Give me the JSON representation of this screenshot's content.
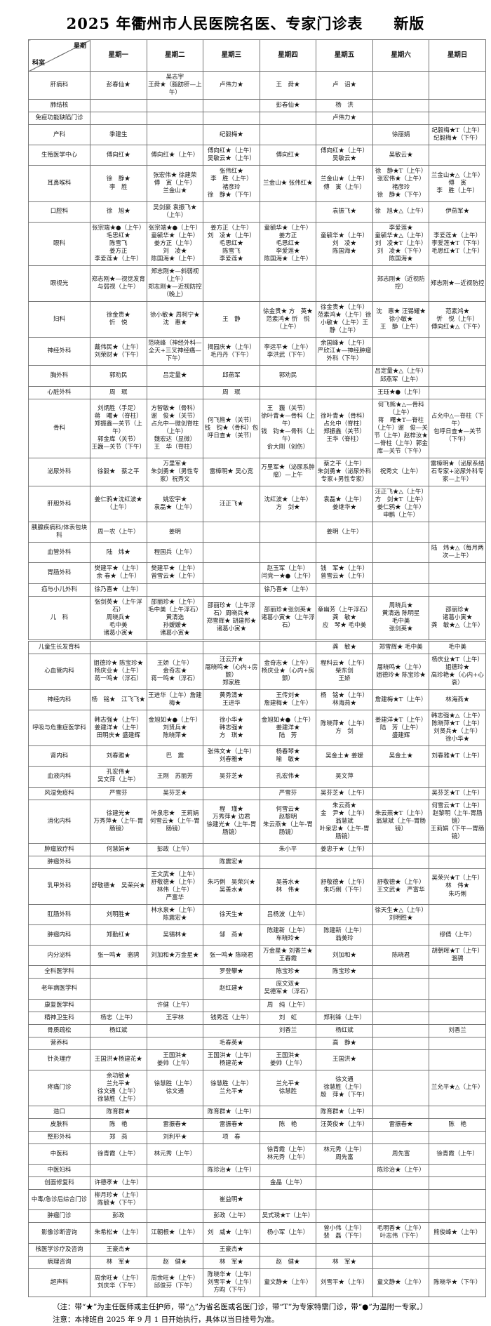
{
  "header": {
    "title": "2025 年衢州市人民医院名医、专家门诊表　　新版"
  },
  "table": {
    "corner": {
      "top": "星期",
      "bottom": "科室"
    },
    "days": [
      "星期一",
      "星期二",
      "星期三",
      "星期四",
      "星期五",
      "星期六",
      "星期日"
    ],
    "rows": [
      {
        "dept": "肝病科",
        "cells": [
          "彭春仙★",
          "吴志宇\n王舜★（脂肪肝—上午）",
          "卢伟力★",
          "王　舜★",
          "卢　诏★",
          "",
          ""
        ]
      },
      {
        "dept": "肺结核",
        "cells": [
          "",
          "",
          "",
          "彭春仙★",
          "杨　洪",
          "",
          ""
        ]
      },
      {
        "dept": "免疫功能缺陷门诊",
        "cells": [
          "",
          "",
          "",
          "",
          "卢伟力★",
          "",
          ""
        ]
      },
      {
        "dept": "产科",
        "cells": [
          "季建生",
          "",
          "纪毅梅★",
          "",
          "",
          "徐丽娟",
          "纪毅梅★T（上午）\n纪毅梅★（下午）"
        ]
      },
      {
        "dept": "生殖医学中心",
        "cells": [
          "傅向红★",
          "傅向红★（上午）",
          "傅向红★（上午）\n吴敏云★（上午）",
          "傅向红★",
          "傅向红★（上午）\n吴敏云★",
          "吴敏云★",
          ""
        ]
      },
      {
        "dept": "耳鼻喉科",
        "cells": [
          "徐　静★\n李　胜",
          "张宏伟★ 徐建荣\n傅　寅（上午）\n兰金山★",
          "张伟红★\n李　胜（上午）\n褚彦玲\n徐　静★（下午）",
          "兰金山★ 张伟红★",
          "兰金山★（上午）\n傅　寅（上午）",
          "徐　静★T（上午）\n张宏伟★（上午）\n褚彦玲\n徐　静★（下午）",
          "兰金山★△（上午）\n傅　寅\n李　胜（上午）"
        ]
      },
      {
        "dept": "口腔科",
        "cells": [
          "徐　旭★",
          "吴剑豪 袁振飞★（上午）",
          "",
          "",
          "袁振飞★",
          "徐　旭★△（上午）",
          "伊燕军★"
        ]
      },
      {
        "dept": "眼科",
        "cells": [
          "张宗端★●（上午）\n毛思红★\n陈雪飞\n姜方正\n李爱莲★（上午）",
          "张宗端★●（上午）\n童毓华★（上午）\n姜方正（上午）\n刘　凌★\n陈国海★（上午）",
          "姜方正（上午）\n刘　凌★（上午）\n毛思红★\n陈雪飞\n李爱莲★",
          "童毓华★（上午）\n姜方正\n毛思红★\n李爱莲★\n陈国海★（上午）",
          "童毓华★（上午）\n刘　凌★\n陈国海★",
          "李爱莲★\n童毓华★△（上午）\n刘　凌★T（上午）\n刘　凌★（下午）\n陈国海★",
          "李爱莲★（上午）\n李爱莲★T（下午）\n毛思红★T（上午）"
        ]
      },
      {
        "dept": "眼视光",
        "cells": [
          "郑志刚★—视觉发育与弱视（上午）",
          "郑志刚★—斜弱视（上午）\n郑志刚★—近视防控（晚上）",
          "",
          "",
          "",
          "郑志刚★（近视防控）",
          "郑志刚★—近视防控"
        ]
      },
      {
        "dept": "妇科",
        "cells": [
          "徐金贵★\n忻　悦",
          "徐小敏★ 周柯宁★\n沈　惠★",
          "王　静",
          "徐金贵★ 方　英★\n范素鸿★ 忻　悦（上午）",
          "徐金贵★（上午）\n范素鸿★（上午）徐小敏★（上午）王　静（上午）",
          "沈　惠★ 汪锡耀★\n徐小敏★\n王　静（上午）",
          "范素鸿★\n忻　悦（上午）\n傅向红★△（下午）"
        ]
      },
      {
        "dept": "神经外科",
        "cells": [
          "戴伟民★（上午）\n刘荣财★（下午）",
          "范晓峰（神经外科—全天+三叉神经痛—下午）",
          "揭园庆★（上午）\n毛丹丹（下午）",
          "李运平★（上午）\n李洪武（下午）",
          "余国峰★（上午）\n严欣江★—神经肿瘤外科（下午）",
          "",
          ""
        ]
      },
      {
        "dept": "胸外科",
        "cells": [
          "郭劝民",
          "吕定量★",
          "邱燕军",
          "郭劝民",
          "",
          "吕定量★△（上午）\n邱燕军（上午）",
          ""
        ]
      },
      {
        "dept": "心脏外科",
        "cells": [
          "周　珉",
          "",
          "周　珉",
          "",
          "",
          "王珏★●（上午）",
          ""
        ]
      },
      {
        "dept": "骨科",
        "cells": [
          "刘炳胜（手足）\n蒋　曙★（脊柱）\n郑振鑫—关节（上午）\n郭金库（关节）\n王巍—关节（下午）",
          "方智敏★（骨科）\n谢　俊★（关节）\n占允中—微创脊柱（上午）\n魏宏达（显微）\n王　华（脊柱）",
          "何飞熊★（关节）\n钱　钧★（骨科）包呼日查★（关节）",
          "王　巍（关节）\n徐叶青★—骨科（上午）\n钱　钧★—骨科（上午）\n俞大刚（创伤）",
          "徐叶青★（骨科）\n占允中（脊柱）\n郑振鑫（关节）\n王华（脊柱）",
          "何飞熊★△—骨科（上午）\n蒋　曙★T—脊柱（上午）谢　俊—关节（上午）赵梓汝★—脊柱（上午）郭金库—关节（下午）",
          "占允中△—脊柱（下午）\n包呼日查★—关节（下午）"
        ]
      },
      {
        "dept": "泌尿外科",
        "cells": [
          "徐毅★　蔡之平",
          "万里军★\n朱剑勇★（男性专家）祝秀文",
          "雷樟明★ 吴心宽",
          "万里军★（泌尿系肿瘤）—上午",
          "蔡之平（上午）\n朱剑勇★（泌尿外科专家+男性专家）",
          "祝秀文（上午）",
          "雷樟明★（泌尿系结石专家+泌尿外科专家—上午）"
        ]
      },
      {
        "dept": "肝胆外科",
        "cells": [
          "姜仁鸦★沈红波★（上午）",
          "姚宏宇★\n袁磊★（上午）",
          "汪正飞★",
          "沈红波★（上午）\n方　剑★",
          "袁磊★（上午）\n姜继华★",
          "汪正飞★△（上午）\n方　剑★T（上午）\n姜仁鸦★（上午）\n申鹏（上午）",
          ""
        ]
      },
      {
        "dept": "胰腺疾病科/体表包块科",
        "cells": [
          "周一农（上午）",
          "姜明",
          "",
          "",
          "姜明（上午）",
          "",
          ""
        ]
      },
      {
        "dept": "血管外科",
        "cells": [
          "陆　炜★",
          "程国兵（上午）",
          "",
          "",
          "",
          "",
          "陆　炜★△（每月两次—上午）"
        ]
      },
      {
        "dept": "胃肠外科",
        "cells": [
          "樊建平★（上午）\n余 春★（上午）",
          "樊建平★（上午）\n曾雪云★（上午）",
          "",
          "赵玉军（上午）\n闫竞一★●（上午）",
          "钱　军★（上午）\n曾雪云★（上午）",
          "",
          ""
        ]
      },
      {
        "dept": "疝与小儿外科",
        "cells": [
          "徐乃喜★（上午）",
          "",
          "",
          "徐乃喜★（上午）",
          "",
          "",
          ""
        ]
      },
      {
        "dept": "儿　科",
        "cells": [
          "张剑英★（上午浮石）\n周晓兵★\n毛中美\n诸葛小寅★",
          "邵丽珍★（上午）\n毛中美（上午浮石）\n黄清选\n孙嫒嫒★\n诸葛小寅★",
          "邵丽珍★（上午浮石）周晓兵★\n郑雪辉★ 胡建邦★\n诸葛小寅★",
          "邵丽珍★张剑英★\n诸葛小寅★（上午浮石）",
          "章幽芳（上午浮石）龚　敏★\n应　琴★ 毛中美",
          "周晓兵★\n黄清选 陈明星\n毛中美\n张剑英★",
          "邵丽珍★\n诸葛小寅★\n龚　敏★△（上午）"
        ]
      },
      {
        "dept": "儿童生长发育科",
        "thick_top": true,
        "cells": [
          "",
          "",
          "",
          "",
          "龚　敏★",
          "郑雪辉★ 毛中美",
          "毛中美"
        ]
      },
      {
        "dept": "心血管内科",
        "cells": [
          "姐德玲★ 陈宝珍★\n杨庆业★（上午）\n蒋一鸣★（浮石）",
          "王娇（上午）\n金奇志★\n蒋一鸣★（浮石）",
          "汪云开★\n屠晓鸣★（心内+房颤）\n郑家胜",
          "金奇志★（上午）\n杨庆业★（心内+房颤）",
          "程科云★（上午）\n柴东剑\n王娇",
          "屠晓鸣★（上午）\n姐德玲★ 陈宝珍★",
          "杨庆业★T（上午）\n姐德玲★\n高珍艳★（心内+心衰）"
        ]
      },
      {
        "dept": "神经内科",
        "cells": [
          "杨　铭★　江飞飞★",
          "王进华（上午）詹建梅★",
          "黄秀清★\n王进华",
          "王传刘★\n詹建梅★（上午）",
          "杨　铭★（上午）\n林海燕★",
          "詹建梅★T（上午）",
          "林海燕★"
        ]
      },
      {
        "dept": "呼吸与危重症医学科",
        "cells": [
          "韩志强★（上午）\n姜建洋★（上午）\n田明庆★ 盛建辉",
          "金旭如★●（上午）\n刘贤兵★\n陈晓萍★",
          "徐小华★\n韩志强★\n方　琪★",
          "金旭如★●（上午）\n姜建洋★\n陆　芳",
          "陈晓萍★（上午）\n方　剑",
          "姜建洋★T（上午）\n陆　芳（上午）\n盛建辉",
          "韩志强★△（上午）\n陈晓萍★T（上午）\n刘贤兵★（上午）\n徐小华★"
        ]
      },
      {
        "dept": "肾内科",
        "cells": [
          "刘春雅★",
          "巴　震",
          "张伟文★（上午）\n刘春雅★",
          "杨春琴★\n喻　敏★",
          "吴金土★ 姜嫒",
          "吴金土★",
          "刘春雅★T（上午）"
        ]
      },
      {
        "dept": "血液内科",
        "cells": [
          "孔宏伟★\n吴文萍（上午）",
          "王刚　苏丽芳",
          "吴芬芝★",
          "孔宏伟★",
          "吴文萍",
          "",
          ""
        ]
      },
      {
        "dept": "风湿免疫科",
        "cells": [
          "严雪芬",
          "吴芬芝★",
          "",
          "严雪芬",
          "吴芬芝★（上午）",
          "",
          "吴芬芝★T（上午）"
        ]
      },
      {
        "dept": "消化内科",
        "cells": [
          "徐建光★\n万秀萍★（上午-胃肠镜）",
          "叶泉忠★　王莉娟\n何雪云★（上午-胃肠镜）",
          "程　瑾★\n万秀萍★ 边君\n徐建光★（上午-胃肠镜）",
          "何雪云★\n赵黎明\n朱云燕★（上午-胃肠镜）",
          "朱云燕★\n金　尹★（上午）\n翁慧斌\n叶泉忠★（上午-胃肠镜）",
          "朱云燕★T（上午）\n翁慧斌（上午-胃肠镜）",
          "何雪云★T（上午）\n赵黎明（上午-胃肠镜）\n王莉娟（下午—胃肠镜）"
        ]
      },
      {
        "dept": "肿瘤放疗科",
        "cells": [
          "何慧娟★",
          "彭政（上午）",
          "",
          "朱小平",
          "姜忠于★（上午）",
          "",
          ""
        ]
      },
      {
        "dept": "肿瘤外科",
        "cells": [
          "",
          "",
          "陈震宏★",
          "",
          "",
          "",
          ""
        ]
      },
      {
        "dept": "乳甲外科",
        "cells": [
          "舒敬德★　吴荣兴★",
          "王文武★（上午）\n舒敬德★（上午）\n林伟（上午）\n严富华",
          "朱巧俐　吴荣兴★\n吴善水★",
          "吴善水★\n林　伟★",
          "舒敬德★（上午）\n朱巧俐（下午）",
          "舒敬德★（上午）\n王文武★　严富华",
          "吴荣兴★T（上午）\n林　伟★\n朱巧俐"
        ]
      },
      {
        "dept": "肛肠外科",
        "cells": [
          "刘明胜★",
          "林水泉★（上午）\n陈震宏★",
          "徐天生★",
          "吕杨波（上午）",
          "",
          "徐天生★△（上午）\n刘明胜★",
          ""
        ]
      },
      {
        "dept": "肿瘤内科",
        "cells": [
          "郑勤红★",
          "吴锡林★",
          "邹　燕★",
          "陈建新（上午）\n车晓玲★",
          "陈建新（上午）\n翁美玲",
          "",
          "缪倩（上午）"
        ]
      },
      {
        "dept": "内分泌科",
        "cells": [
          "张一鸣★　骆骋",
          "刘加和★万金星★",
          "张一鸣★ 陈晓君",
          "万金星★ 刘香兰★\n王春霞",
          "刘加和★",
          "陈晓君",
          "胡朝晖★T（上午）\n骆骋"
        ]
      },
      {
        "dept": "全科医学科",
        "cells": [
          "",
          "",
          "罗登攀★",
          "陈宝珍★",
          "陈宝珍★",
          "",
          ""
        ]
      },
      {
        "dept": "老年病医学科",
        "cells": [
          "",
          "",
          "赵红建★",
          "庞文双★\n吴德军★（浮石）",
          "",
          "",
          ""
        ]
      },
      {
        "dept": "康复医学科",
        "cells": [
          "",
          "许健（上午）",
          "",
          "周　纯（上午）",
          "",
          "",
          ""
        ]
      },
      {
        "dept": "精神卫生科",
        "cells": [
          "杨志（上午）",
          "王宇林",
          "钱秀莲（上午）",
          "刘　虹",
          "郑利锋（上午）",
          "",
          ""
        ]
      },
      {
        "dept": "骨质疏松",
        "cells": [
          "杨红斌",
          "",
          "",
          "刘香兰",
          "杨红斌",
          "",
          "刘香兰"
        ]
      },
      {
        "dept": "营养科",
        "cells": [
          "",
          "",
          "毛春英★",
          "",
          "高　静★",
          "",
          ""
        ]
      },
      {
        "dept": "针灸理疗",
        "cells": [
          "王国洪★杨建花★",
          "王国洪★\n姜帅（上午）",
          "王国洪★（上午）\n杨建花★",
          "王国洪★\n姜帅（上午）",
          "王国洪★",
          "",
          ""
        ]
      },
      {
        "dept": "疼痛门诊",
        "cells": [
          "余功敏★\n兰允平★\n徐文通（上午）\n徐慧胜（上午）",
          "徐慧胜（上午）\n徐文通",
          "徐慧胜（上午）\n兰允平★",
          "兰允平★\n徐慧胜",
          "徐文通\n徐慧胜（上午）\n殷　萍★（下午）",
          "",
          "兰允平★△（上午）"
        ]
      },
      {
        "dept": "造口",
        "cells": [
          "陈育群★",
          "",
          "陈育群★（上午）",
          "",
          "陈育群★（上午）",
          "",
          ""
        ]
      },
      {
        "dept": "皮肤科",
        "cells": [
          "陈　艳",
          "雷振春★",
          "雷振春★",
          "陈　艳",
          "汪英俊★（上午）",
          "雷振春★",
          "陈　艳"
        ]
      },
      {
        "dept": "整形外科",
        "cells": [
          "郑　燕",
          "刘利平★",
          "项　春",
          "",
          "",
          "",
          ""
        ]
      },
      {
        "dept": "中医科",
        "cells": [
          "徐青霞（上午）",
          "林元秀（上午）",
          "",
          "徐青霞（上午）\n林元秀（上午）",
          "林元秀（上午）\n周先富",
          "周先富",
          "徐青霞（上午）"
        ]
      },
      {
        "dept": "中医妇科",
        "cells": [
          "",
          "",
          "陈珍治★（上午）",
          "",
          "",
          "陈珍治★（上午）",
          ""
        ]
      },
      {
        "dept": "创面修复科",
        "cells": [
          "许德孝★（上午）",
          "",
          "",
          "金晶（上午）",
          "",
          "",
          ""
        ]
      },
      {
        "dept": "中毒/急诊后综合门诊",
        "cells": [
          "柳月珍★（上午）\n陈毓★（下午）",
          "",
          "崔益明★",
          "",
          "",
          "",
          ""
        ]
      },
      {
        "dept": "肿瘤门诊",
        "cells": [
          "彭政",
          "",
          "彭政（上午）",
          "吴式琇★T（上午）",
          "",
          "",
          ""
        ]
      },
      {
        "dept": "影像诊断咨询",
        "cells": [
          "朱希松★（上午）",
          "江朝根★（上午）",
          "刘　威★（上午）",
          "杨小军（上午）",
          "曾小伟（上午）\n裴　磊（下午）",
          "毛明香★（上午）\n叶志伟（下午）",
          "熊俊峰★（上午）"
        ]
      },
      {
        "dept": "核医学诊疗及咨询",
        "cells": [
          "王豪杰★",
          "",
          "王豪杰★",
          "",
          "",
          "",
          ""
        ]
      },
      {
        "dept": "病理咨询",
        "cells": [
          "林　军★",
          "赵　健★",
          "林　军★",
          "赵　健★",
          "林　军★",
          "",
          ""
        ]
      },
      {
        "dept": "超声科",
        "cells": [
          "周余旺★（上午）\n刘庆华（下午）",
          "周余旺★（上午）\n邱俊芬（下午）",
          "陈晓华★（上午）\n刘雪平★（上午）\n方昀（下午）",
          "童文静★（上午）",
          "刘雪平★（上午）",
          "童文静★（上午）",
          "陈晓华★（下午）"
        ]
      }
    ]
  },
  "footer": {
    "note1": "（注：带“★”为主任医师或主任护师，带“△”为省名医或名医门诊，带“T”为专家特需门诊，带“●”为温附一专家。）",
    "note2": "注意：本排班自 2025 年 9 月 1 日开始执行，具体以当日挂号为准。"
  }
}
